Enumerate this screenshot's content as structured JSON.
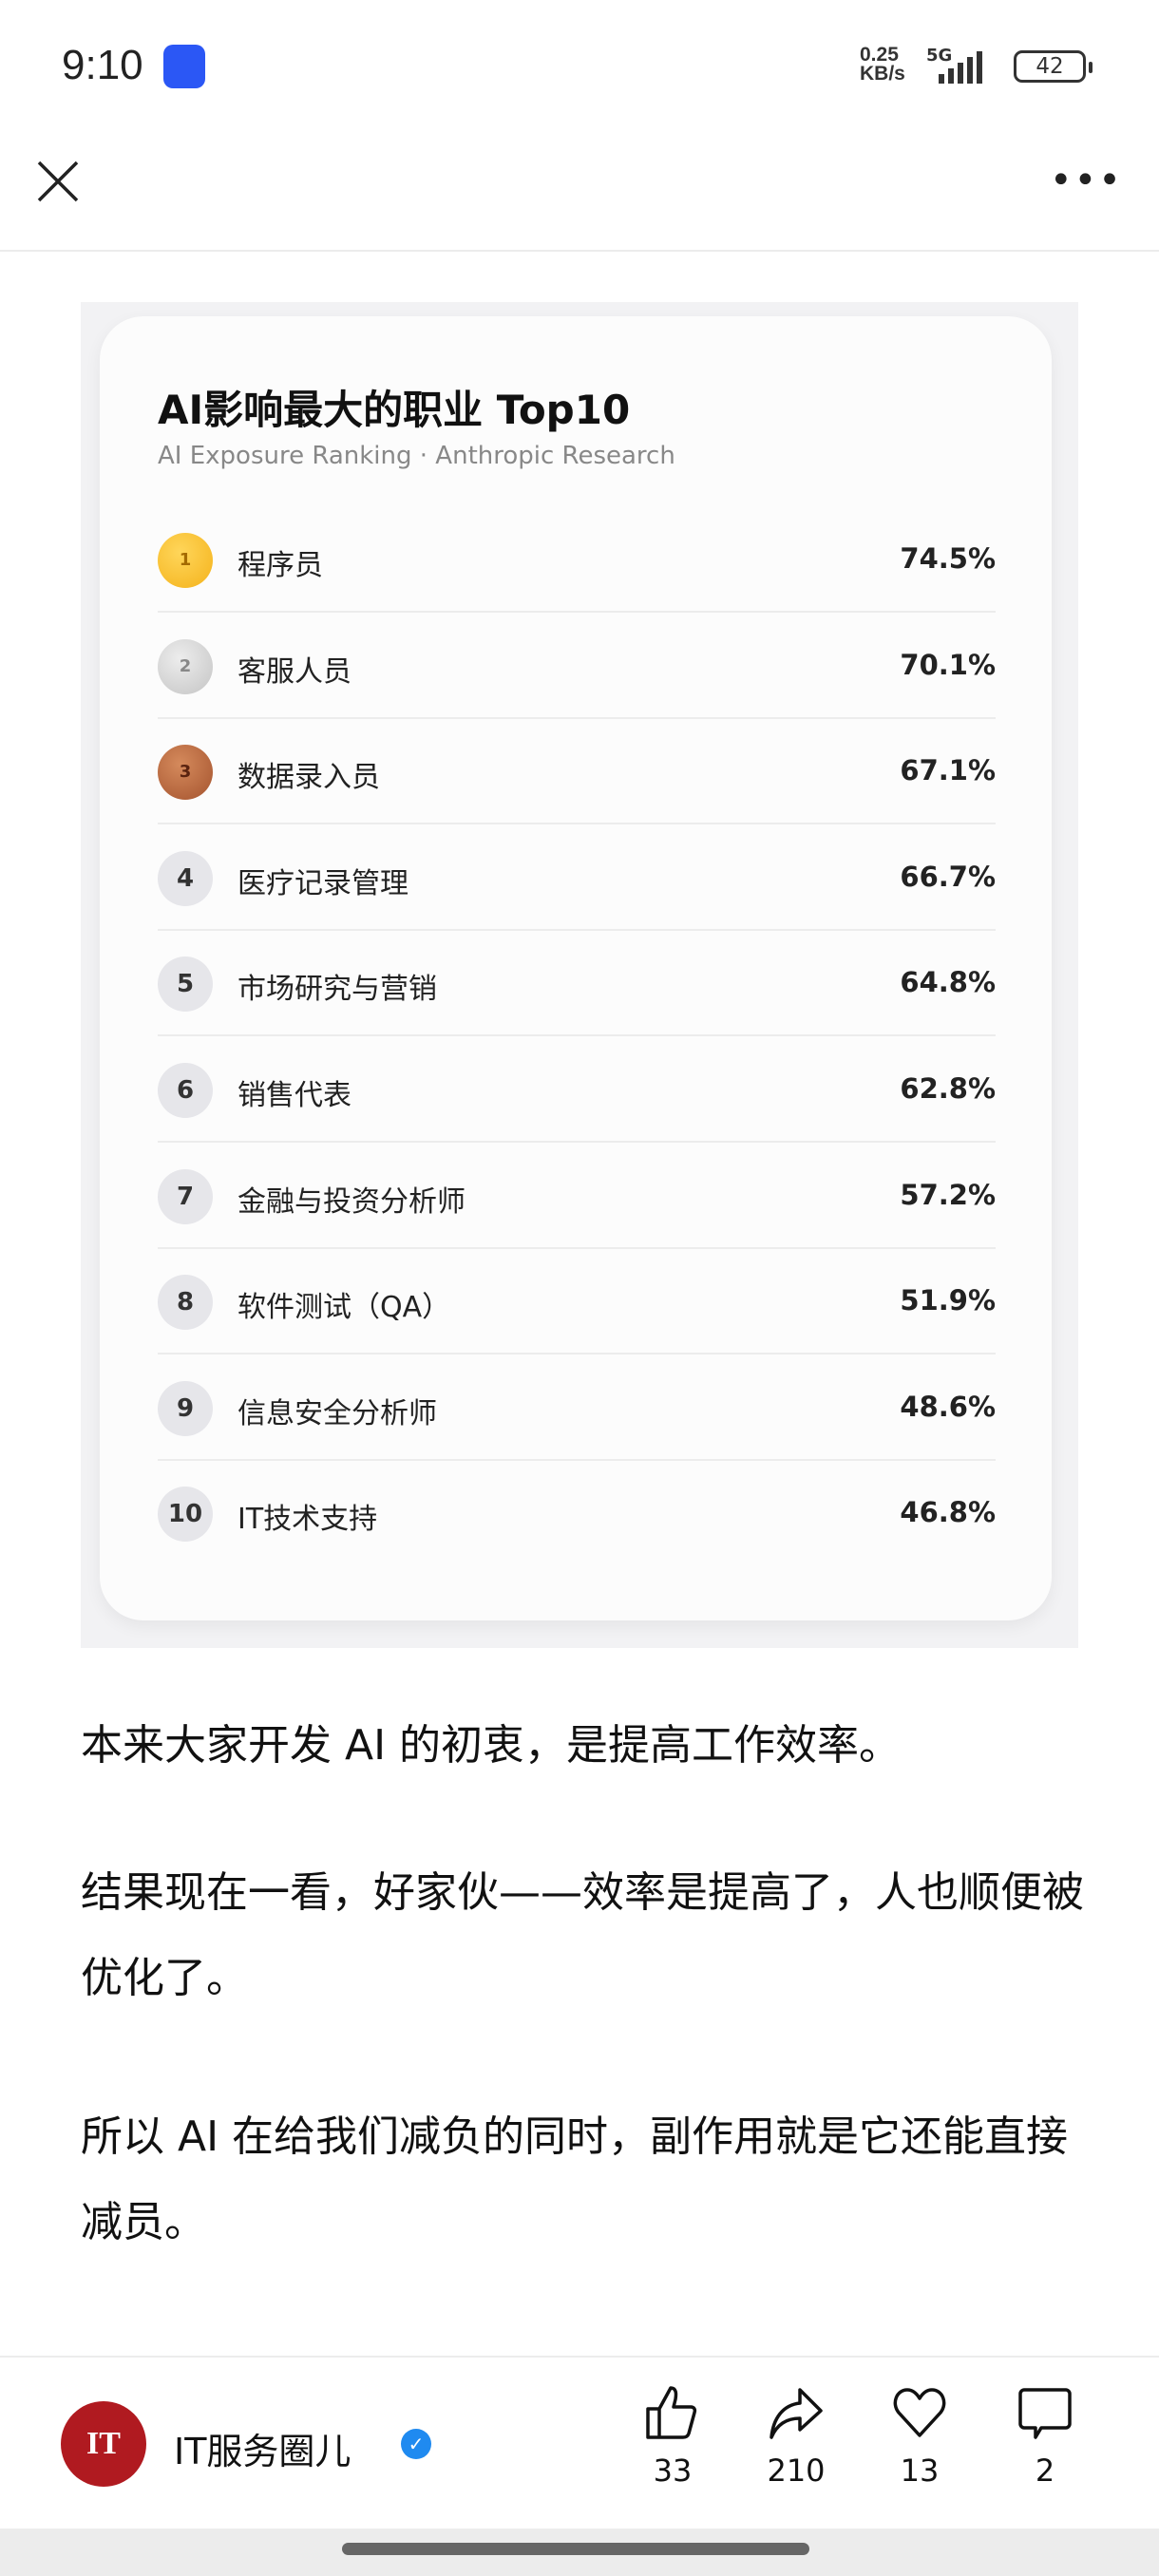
{
  "status_bar": {
    "time": "9:10",
    "net_speed_value": "0.25",
    "net_speed_unit": "KB/s",
    "network": "5G",
    "battery": "42"
  },
  "nav": {
    "close_icon": "close-icon",
    "more_icon": "more-icon"
  },
  "card": {
    "title": "AI影响最大的职业 Top10",
    "subtitle": "AI Exposure Ranking · Anthropic Research",
    "rows": [
      {
        "rank": "1",
        "medal": "gold",
        "label": "程序员",
        "value": "74.5%"
      },
      {
        "rank": "2",
        "medal": "silver",
        "label": "客服人员",
        "value": "70.1%"
      },
      {
        "rank": "3",
        "medal": "bronze",
        "label": "数据录入员",
        "value": "67.1%"
      },
      {
        "rank": "4",
        "label": "医疗记录管理",
        "value": "66.7%"
      },
      {
        "rank": "5",
        "label": "市场研究与营销",
        "value": "64.8%"
      },
      {
        "rank": "6",
        "label": "销售代表",
        "value": "62.8%"
      },
      {
        "rank": "7",
        "label": "金融与投资分析师",
        "value": "57.2%"
      },
      {
        "rank": "8",
        "label": "软件测试（QA）",
        "value": "51.9%"
      },
      {
        "rank": "9",
        "label": "信息安全分析师",
        "value": "48.6%"
      },
      {
        "rank": "10",
        "label": "IT技术支持",
        "value": "46.8%"
      }
    ]
  },
  "article": {
    "paragraphs": [
      "本来大家开发 AI 的初衷，是提高工作效率。",
      "结果现在一看，好家伙——效率是提高了，人也顺便被优化了。",
      "所以 AI 在给我们减负的同时，副作用就是它还能直接减员。"
    ]
  },
  "footer": {
    "author": "IT服务圈儿",
    "avatar_text": "IT",
    "verified": true,
    "actions": [
      {
        "icon": "thumbs-up-icon",
        "count": "33"
      },
      {
        "icon": "share-icon",
        "count": "210"
      },
      {
        "icon": "heart-icon",
        "count": "13"
      },
      {
        "icon": "comment-icon",
        "count": "2"
      }
    ]
  },
  "colors": {
    "avatar": "#b01a20",
    "verified": "#1f8af0",
    "gold": "#f4b21b",
    "silver": "#c4c4c4",
    "bronze": "#a4532e"
  }
}
